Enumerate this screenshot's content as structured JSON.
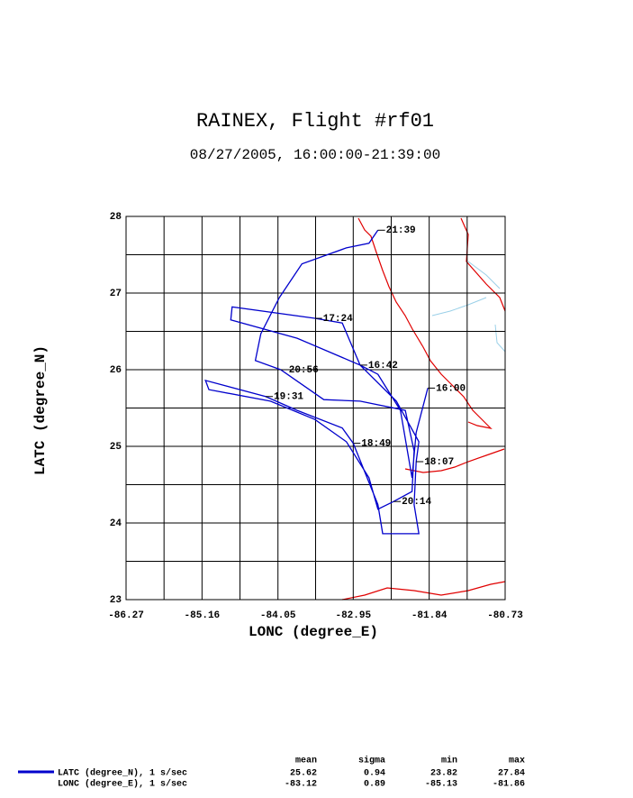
{
  "chart_data": {
    "type": "line",
    "title": "RAINEX, Flight #rf01",
    "subtitle": "08/27/2005, 16:00:00-21:39:00",
    "x_label": "LONC (degree_E)",
    "y_label": "LATC (degree_N)",
    "xlim": [
      -86.27,
      -80.73
    ],
    "ylim": [
      23,
      28
    ],
    "xticks": [
      -86.27,
      -85.16,
      -84.05,
      -82.95,
      -81.84,
      -80.73
    ],
    "yticks": [
      23,
      24,
      25,
      26,
      27,
      28
    ],
    "grid": true,
    "series": [
      {
        "name": "LATC (degree_N), 1 s/sec",
        "color": "#0000cc",
        "x": [
          -81.86,
          -82.03,
          -82.09,
          -82.26,
          -82.59,
          -82.85,
          -83.11,
          -83.51,
          -84.72,
          -84.74,
          -83.77,
          -82.85,
          -82.32,
          -81.99,
          -82.03,
          -82.06,
          -81.99,
          -82.52,
          -82.59,
          -82.95,
          -83.11,
          -83.77,
          -84.23,
          -85.11,
          -85.06,
          -84.16,
          -83.51,
          -83.05,
          -82.72,
          -82.59,
          -82.36,
          -82.09,
          -82.06,
          -82.19,
          -82.85,
          -83.38,
          -84.01,
          -84.38,
          -84.3,
          -84.03,
          -83.7,
          -83.05,
          -82.72,
          -82.59
        ],
        "values": [
          25.76,
          25.18,
          24.59,
          25.47,
          25.94,
          26.06,
          26.61,
          26.67,
          26.82,
          26.65,
          26.41,
          26.06,
          25.59,
          25.06,
          24.8,
          24.24,
          23.86,
          23.86,
          24.24,
          25.04,
          25.24,
          25.47,
          25.65,
          25.86,
          25.74,
          25.59,
          25.35,
          25.06,
          24.59,
          24.18,
          24.28,
          24.41,
          24.94,
          25.47,
          25.59,
          25.61,
          26.0,
          26.12,
          26.47,
          26.94,
          27.38,
          27.59,
          27.65,
          27.82
        ]
      },
      {
        "name": "LONC (degree_E), 1 s/sec"
      }
    ],
    "annotations": [
      {
        "text": "16:00",
        "x": -81.86,
        "y": 25.76
      },
      {
        "text": "16:42",
        "x": -82.85,
        "y": 26.06
      },
      {
        "text": "17:24",
        "x": -83.51,
        "y": 26.67
      },
      {
        "text": "18:07",
        "x": -82.03,
        "y": 24.8
      },
      {
        "text": "18:49",
        "x": -82.95,
        "y": 25.04
      },
      {
        "text": "19:31",
        "x": -84.23,
        "y": 25.65
      },
      {
        "text": "20:14",
        "x": -82.36,
        "y": 24.28
      },
      {
        "text": "20:56",
        "x": -84.01,
        "y": 26.0
      },
      {
        "text": "21:39",
        "x": -82.59,
        "y": 27.82
      }
    ],
    "stats": {
      "columns": [
        "mean",
        "sigma",
        "min",
        "max"
      ],
      "rows": [
        [
          "25.62",
          "0.94",
          "23.82",
          "27.84"
        ],
        [
          "-83.12",
          "0.89",
          "-85.13",
          "-81.86"
        ]
      ]
    }
  }
}
